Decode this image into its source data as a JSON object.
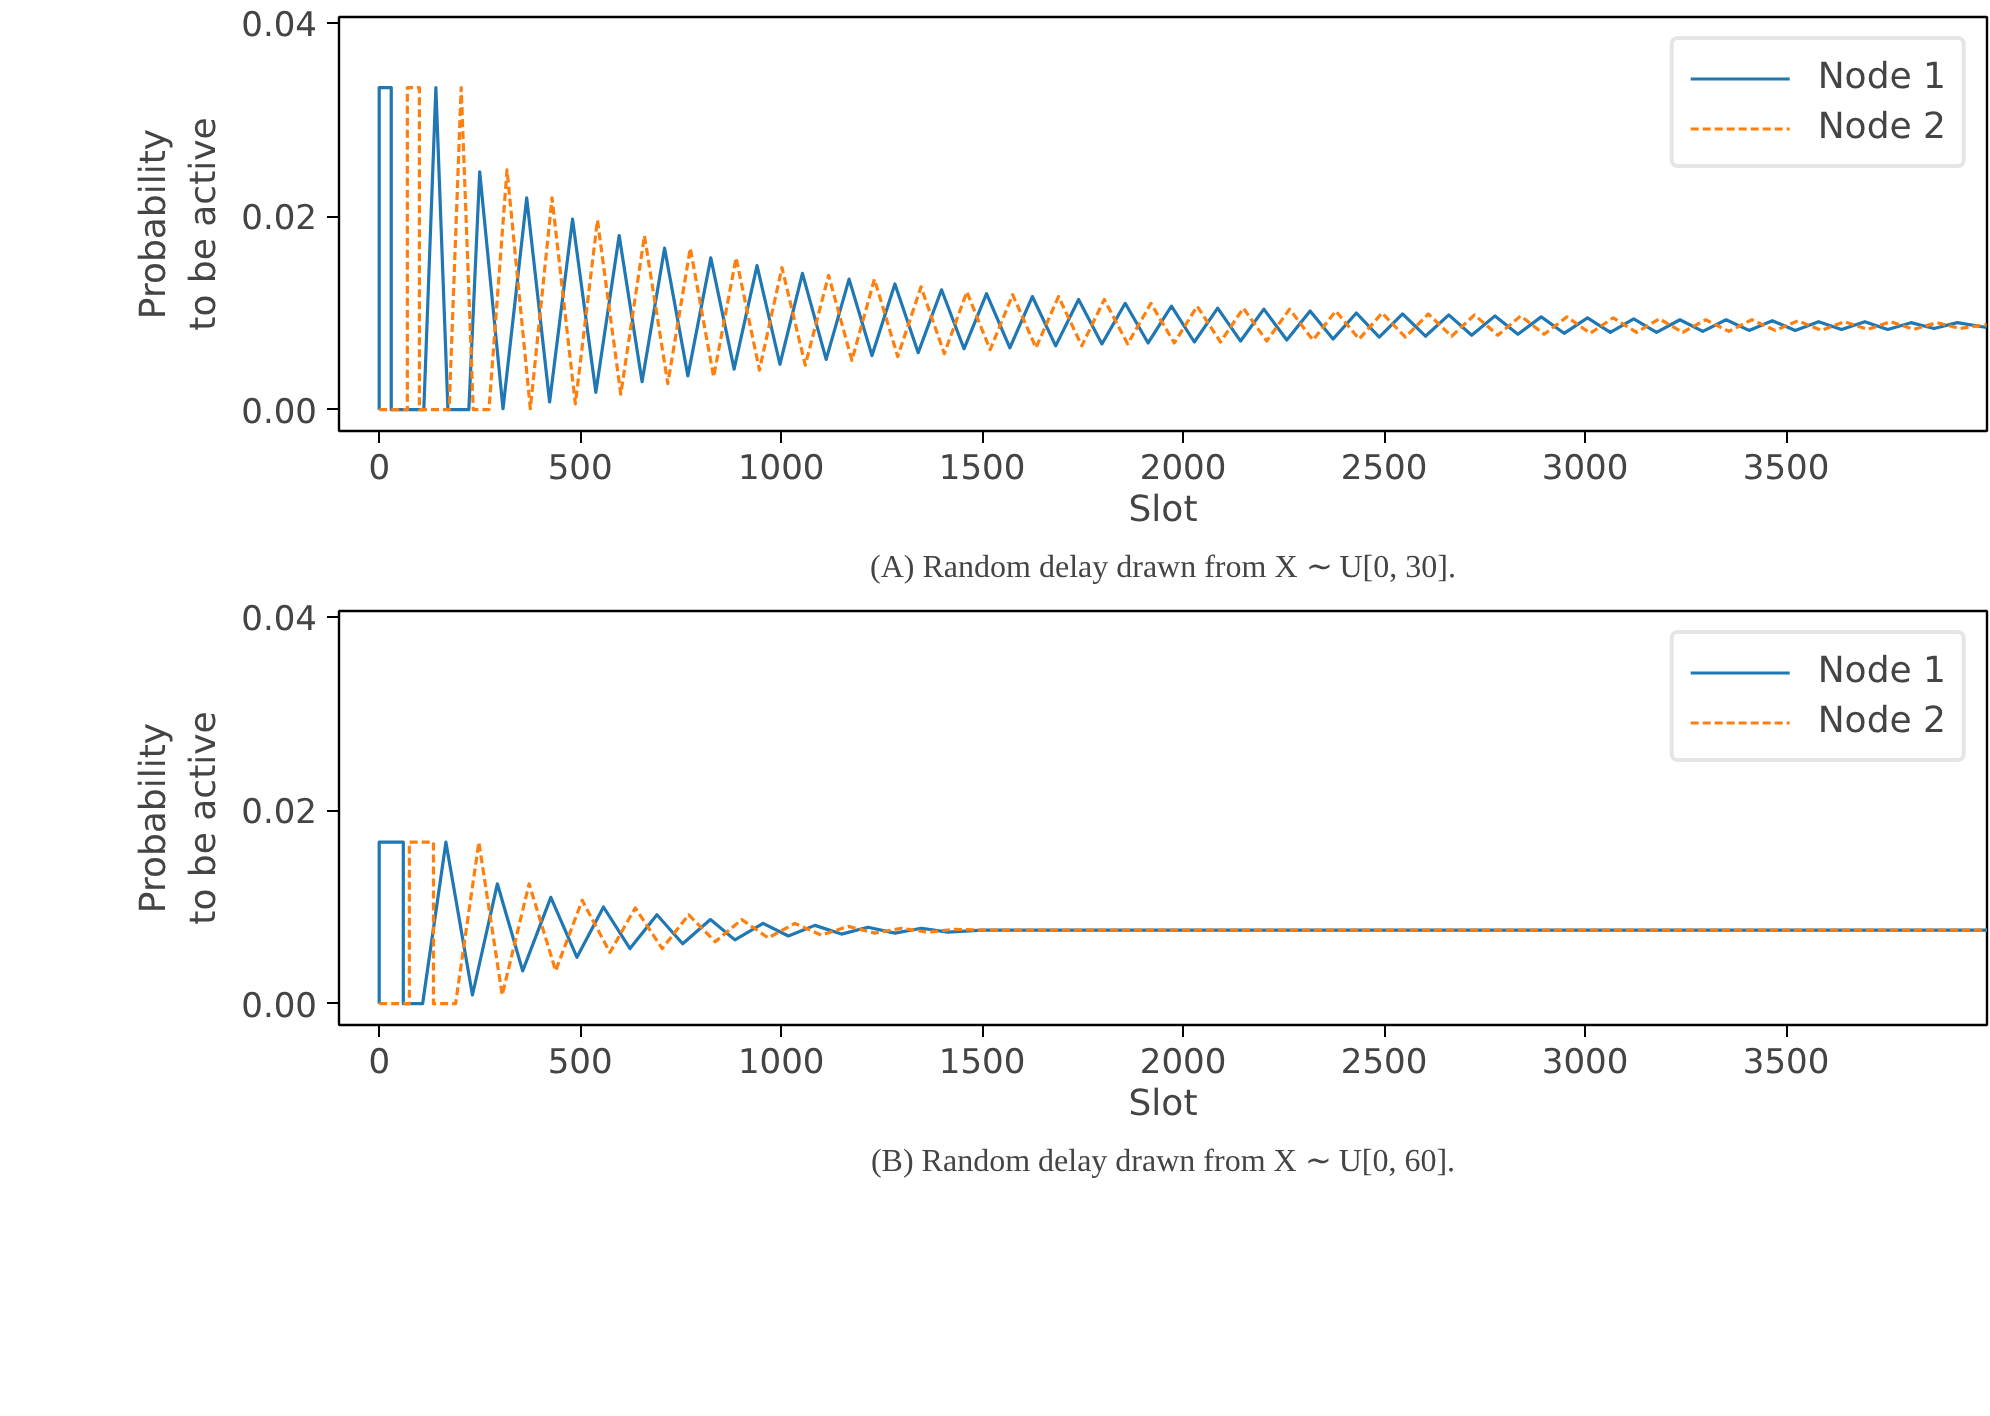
{
  "chart_data": [
    {
      "type": "line",
      "xlabel": "Slot",
      "ylabel": "Probability\nto be active",
      "annotations": [
        "(A) Random delay drawn from X ∼ U[0, 30]."
      ],
      "xlim": [
        -100,
        4000
      ],
      "ylim": [
        -0.0022,
        0.0406
      ],
      "xticks": [
        0,
        500,
        1000,
        1500,
        2000,
        2500,
        3000,
        3500
      ],
      "yticks": [
        {
          "value": 0,
          "label": "0.00"
        },
        {
          "value": 0.02,
          "label": "0.02"
        },
        {
          "value": 0.04,
          "label": "0.04"
        }
      ],
      "grid": false,
      "legend": "top right",
      "series": [
        {
          "name": "Node 1",
          "color": "#1f77b4",
          "line_style": "solid",
          "x": [
            0,
            0,
            30,
            30,
            111,
            141,
            171,
            223,
            250,
            308,
            367,
            424,
            481,
            539,
            597,
            654,
            710,
            768,
            825,
            883,
            940,
            997,
            1053,
            1112,
            1169,
            1226,
            1283,
            1341,
            1399,
            1455,
            1511,
            1569,
            1625,
            1683,
            1740,
            1798,
            1856,
            1913,
            1971,
            2028,
            2086,
            2143,
            2201,
            2258,
            2316,
            2373,
            2431,
            2488,
            2546,
            2603,
            2661,
            2718,
            2776,
            2833,
            2891,
            2948,
            3006,
            3063,
            3121,
            3178,
            3236,
            3293,
            3351,
            3408,
            3466,
            3523,
            3581,
            3638,
            3696,
            3753,
            3811,
            3868,
            3926,
            3999
          ],
          "values": [
            0,
            0.0333,
            0.0333,
            0,
            0,
            0.0333,
            0,
            0,
            0.0246,
            0.0001,
            0.0219,
            0.0008,
            0.0197,
            0.0018,
            0.018,
            0.0029,
            0.0167,
            0.0035,
            0.0157,
            0.0042,
            0.0149,
            0.0047,
            0.0141,
            0.0052,
            0.0135,
            0.0056,
            0.013,
            0.0059,
            0.0124,
            0.0063,
            0.012,
            0.0064,
            0.0117,
            0.0066,
            0.0114,
            0.0068,
            0.011,
            0.0069,
            0.0107,
            0.007,
            0.0105,
            0.0071,
            0.0104,
            0.0072,
            0.0102,
            0.0073,
            0.01,
            0.0075,
            0.0099,
            0.0076,
            0.0098,
            0.0077,
            0.0097,
            0.0078,
            0.0096,
            0.0079,
            0.0095,
            0.008,
            0.0094,
            0.008,
            0.0093,
            0.0081,
            0.0093,
            0.0082,
            0.0092,
            0.0082,
            0.0091,
            0.0083,
            0.0091,
            0.0083,
            0.009,
            0.0084,
            0.009,
            0.0085
          ]
        },
        {
          "name": "Node 2",
          "color": "#ff7f0e",
          "line_style": "dashed",
          "x": [
            0,
            70,
            70,
            100,
            100,
            174,
            204,
            234,
            273,
            318,
            376,
            430,
            488,
            543,
            601,
            660,
            718,
            774,
            832,
            888,
            946,
            1002,
            1060,
            1118,
            1176,
            1232,
            1290,
            1348,
            1406,
            1462,
            1520,
            1576,
            1634,
            1690,
            1748,
            1804,
            1862,
            1920,
            1978,
            2035,
            2093,
            2150,
            2208,
            2265,
            2323,
            2380,
            2438,
            2495,
            2553,
            2610,
            2668,
            2725,
            2783,
            2840,
            2898,
            2955,
            3013,
            3070,
            3128,
            3185,
            3243,
            3300,
            3358,
            3415,
            3473,
            3530,
            3588,
            3645,
            3703,
            3760,
            3818,
            3875,
            3933,
            3999
          ],
          "values": [
            0,
            0,
            0.0333,
            0.0333,
            0,
            0,
            0.0333,
            0,
            0,
            0.0248,
            0.0001,
            0.0219,
            0.0006,
            0.0196,
            0.0016,
            0.018,
            0.0027,
            0.0167,
            0.0034,
            0.0157,
            0.0041,
            0.0147,
            0.0046,
            0.0139,
            0.0051,
            0.0135,
            0.0055,
            0.0127,
            0.0058,
            0.0122,
            0.0062,
            0.0119,
            0.0064,
            0.0117,
            0.0066,
            0.0114,
            0.0068,
            0.011,
            0.0069,
            0.0107,
            0.007,
            0.0105,
            0.0071,
            0.0104,
            0.0072,
            0.0102,
            0.0073,
            0.01,
            0.0075,
            0.0099,
            0.0076,
            0.0098,
            0.0077,
            0.0097,
            0.0078,
            0.0096,
            0.0079,
            0.0095,
            0.008,
            0.0094,
            0.008,
            0.0093,
            0.0081,
            0.0093,
            0.0082,
            0.0092,
            0.0082,
            0.0091,
            0.0083,
            0.0091,
            0.0083,
            0.009,
            0.0084,
            0.0088
          ]
        }
      ]
    },
    {
      "type": "line",
      "xlabel": "Slot",
      "ylabel": "Probability\nto be active",
      "annotations": [
        "(B) Random delay drawn from X ∼ U[0, 60]."
      ],
      "xlim": [
        -100,
        4000
      ],
      "ylim": [
        -0.0022,
        0.0406
      ],
      "xticks": [
        0,
        500,
        1000,
        1500,
        2000,
        2500,
        3000,
        3500
      ],
      "yticks": [
        {
          "value": 0,
          "label": "0.00"
        },
        {
          "value": 0.02,
          "label": "0.02"
        },
        {
          "value": 0.04,
          "label": "0.04"
        }
      ],
      "grid": false,
      "legend": "top right",
      "series": [
        {
          "name": "Node 1",
          "color": "#1f77b4",
          "line_style": "solid",
          "x": [
            0,
            0,
            60,
            60,
            108,
            166,
            232,
            294,
            357,
            427,
            492,
            558,
            624,
            691,
            755,
            824,
            885,
            955,
            1018,
            1084,
            1150,
            1216,
            1283,
            1349,
            1415,
            1500,
            3999
          ],
          "values": [
            0,
            0.0167,
            0.0167,
            0,
            0,
            0.0167,
            0.0009,
            0.0124,
            0.0034,
            0.011,
            0.0048,
            0.01,
            0.0057,
            0.0092,
            0.0062,
            0.0087,
            0.0066,
            0.0083,
            0.007,
            0.0081,
            0.0072,
            0.0079,
            0.0073,
            0.0078,
            0.0074,
            0.0076,
            0.0076
          ]
        },
        {
          "name": "Node 2",
          "color": "#ff7f0e",
          "line_style": "dashed",
          "x": [
            0,
            75,
            75,
            135,
            135,
            190,
            248,
            306,
            373,
            439,
            505,
            574,
            637,
            704,
            770,
            836,
            902,
            968,
            1034,
            1100,
            1167,
            1233,
            1299,
            1365,
            1432,
            1500,
            3999
          ],
          "values": [
            0,
            0,
            0.0167,
            0.0167,
            0,
            0,
            0.0167,
            0.0009,
            0.0124,
            0.0034,
            0.0107,
            0.0053,
            0.0099,
            0.0057,
            0.0092,
            0.0064,
            0.0087,
            0.0068,
            0.0083,
            0.0071,
            0.008,
            0.0073,
            0.0078,
            0.0074,
            0.0077,
            0.0076,
            0.0076
          ]
        }
      ]
    }
  ]
}
